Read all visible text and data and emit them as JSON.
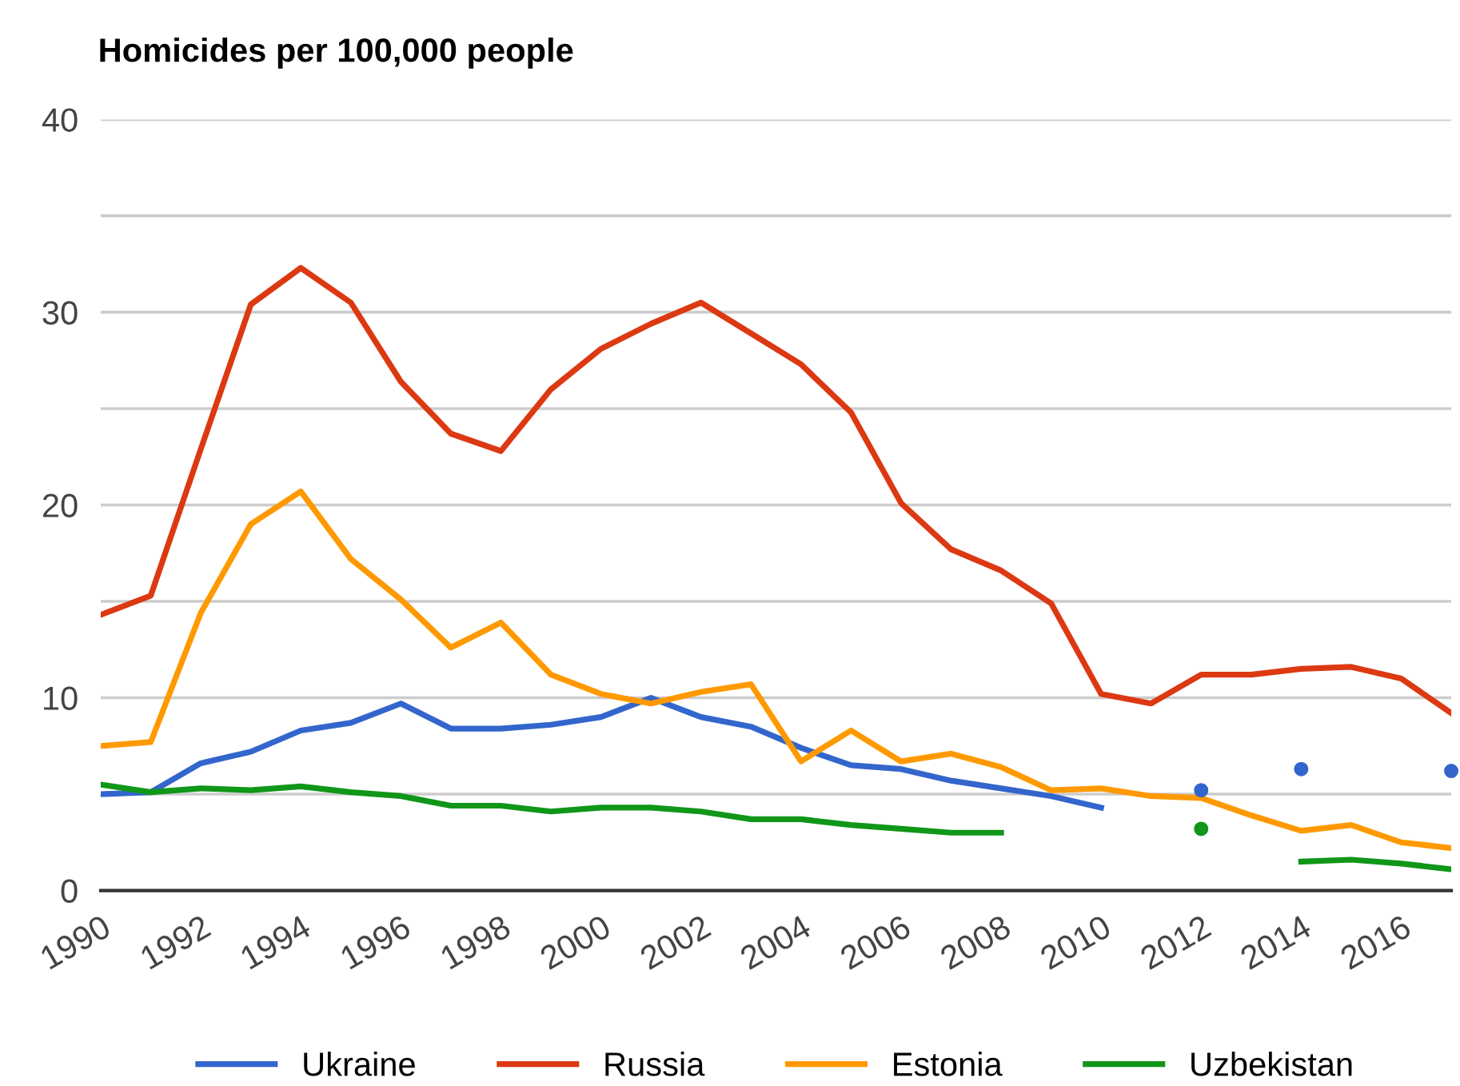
{
  "chart_data": {
    "type": "line",
    "title": "Homicides per 100,000 people",
    "x": [
      1990,
      1991,
      1992,
      1993,
      1994,
      1995,
      1996,
      1997,
      1998,
      1999,
      2000,
      2001,
      2002,
      2003,
      2004,
      2005,
      2006,
      2007,
      2008,
      2009,
      2010,
      2011,
      2012,
      2013,
      2014,
      2015,
      2016,
      2017
    ],
    "series": [
      {
        "name": "Ukraine",
        "color": "#3366cc",
        "values": [
          5.0,
          5.1,
          6.6,
          7.2,
          8.3,
          8.7,
          9.7,
          8.4,
          8.4,
          8.6,
          9.0,
          10.0,
          9.0,
          8.5,
          7.4,
          6.5,
          6.3,
          5.7,
          5.3,
          4.9,
          4.3,
          null,
          5.2,
          null,
          6.3,
          null,
          null,
          6.2
        ]
      },
      {
        "name": "Russia",
        "color": "#dc3912",
        "values": [
          14.3,
          15.3,
          22.9,
          30.4,
          32.3,
          30.5,
          26.4,
          23.7,
          22.8,
          26.0,
          28.1,
          29.4,
          30.5,
          28.9,
          27.3,
          24.8,
          20.1,
          17.7,
          16.6,
          14.9,
          10.2,
          9.7,
          11.2,
          11.2,
          11.5,
          11.6,
          11.0,
          9.2
        ]
      },
      {
        "name": "Estonia",
        "color": "#ff9900",
        "values": [
          7.5,
          7.7,
          14.4,
          19.0,
          20.7,
          17.2,
          15.1,
          12.6,
          13.9,
          11.2,
          10.2,
          9.7,
          10.3,
          10.7,
          6.7,
          8.3,
          6.7,
          7.1,
          6.4,
          5.2,
          5.3,
          4.9,
          4.8,
          3.9,
          3.1,
          3.4,
          2.5,
          2.2
        ]
      },
      {
        "name": "Uzbekistan",
        "color": "#109618",
        "values": [
          5.5,
          5.1,
          5.3,
          5.2,
          5.4,
          5.1,
          4.9,
          4.4,
          4.4,
          4.1,
          4.3,
          4.3,
          4.1,
          3.7,
          3.7,
          3.4,
          3.2,
          3.0,
          3.0,
          null,
          null,
          null,
          3.2,
          null,
          1.5,
          1.6,
          1.4,
          1.1
        ]
      }
    ],
    "xlim": [
      1990,
      2017
    ],
    "xticks": [
      1990,
      1992,
      1994,
      1996,
      1998,
      2000,
      2002,
      2004,
      2006,
      2008,
      2010,
      2012,
      2014,
      2016
    ],
    "ylim": [
      0,
      40
    ],
    "yticks": [
      0,
      {
        "value": 5,
        "label": null
      },
      10,
      {
        "value": 15,
        "label": null
      },
      20,
      {
        "value": 25,
        "label": null
      },
      30,
      {
        "value": 35,
        "label": null
      },
      40
    ],
    "grid": "y",
    "legend": "bottom",
    "marker": "none",
    "line_style": "solid"
  }
}
